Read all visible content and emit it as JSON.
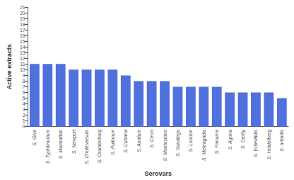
{
  "chart_data": {
    "type": "bar",
    "categories": [
      "S. Give",
      "S. Typhimurium",
      "S. Manhattan",
      "S. Newport",
      "S. Choleraesuis",
      "S. Oranienburg",
      "S. Pullorum",
      "S. Cubana",
      "S. Anatum",
      "S. Cerro",
      "S. Montevideo",
      "S. Sandiego",
      "S. London",
      "S. Meleagridis",
      "S. Panama",
      "S. Agona",
      "S. Derby",
      "S. Enteritidis",
      "S. Heidelberg",
      "S. Infantis"
    ],
    "values": [
      11,
      11,
      11,
      10,
      10,
      10,
      10,
      9,
      8,
      8,
      8,
      7,
      7,
      7,
      7,
      6,
      6,
      6,
      6,
      5
    ],
    "xlabel": "Serovars",
    "ylabel": "Active extracts",
    "ylim": [
      0,
      21
    ],
    "yticks": [
      0,
      1,
      2,
      3,
      4,
      5,
      6,
      7,
      8,
      9,
      10,
      11,
      12,
      13,
      14,
      15,
      16,
      17,
      18,
      19,
      20,
      21
    ],
    "grid": false
  }
}
